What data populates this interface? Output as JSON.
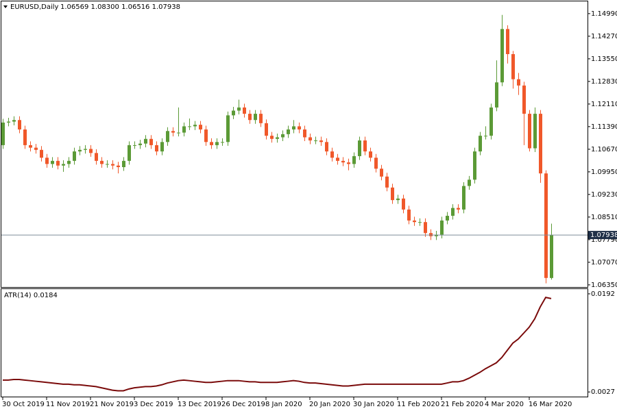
{
  "chart_data": [
    {
      "type": "candlestick",
      "title": "EURUSD,Daily",
      "ohlc_label": "1.06569 1.08300 1.06516 1.07938",
      "up_color": "#5b9a36",
      "down_color": "#f0582a",
      "categories": [
        "30 Oct 2019",
        null,
        null,
        null,
        null,
        null,
        null,
        null,
        "11 Nov 2019",
        null,
        null,
        null,
        null,
        null,
        null,
        null,
        "21 Nov 2019",
        null,
        null,
        null,
        null,
        null,
        null,
        null,
        "3 Dec 2019",
        null,
        null,
        null,
        null,
        null,
        null,
        null,
        "13 Dec 2019",
        null,
        null,
        null,
        null,
        null,
        null,
        null,
        "26 Dec 2019",
        null,
        null,
        null,
        null,
        null,
        null,
        null,
        "8 Jan 2020",
        null,
        null,
        null,
        null,
        null,
        null,
        null,
        "20 Jan 2020",
        null,
        null,
        null,
        null,
        null,
        null,
        null,
        "30 Jan 2020",
        null,
        null,
        null,
        null,
        null,
        null,
        null,
        "11 Feb 2020",
        null,
        null,
        null,
        null,
        null,
        null,
        null,
        "21 Feb 2020",
        null,
        null,
        null,
        null,
        null,
        null,
        null,
        "4 Mar 2020",
        null,
        null,
        null,
        null,
        null,
        null,
        null,
        "16 Mar 2020",
        null,
        null,
        null,
        null
      ],
      "open": [
        1.108,
        1.1152,
        1.1155,
        1.116,
        1.113,
        1.108,
        1.1072,
        1.1065,
        1.104,
        1.102,
        1.103,
        1.1015,
        1.102,
        1.103,
        1.106,
        1.1065,
        1.1068,
        1.1055,
        1.103,
        1.102,
        1.102,
        1.1015,
        1.101,
        1.103,
        1.108,
        1.108,
        1.1085,
        1.11,
        1.108,
        1.106,
        1.109,
        1.1125,
        1.112,
        1.112,
        1.114,
        1.114,
        1.1145,
        1.113,
        1.109,
        1.108,
        1.109,
        1.109,
        1.1175,
        1.119,
        1.12,
        1.118,
        1.116,
        1.118,
        1.115,
        1.111,
        1.11,
        1.1105,
        1.1115,
        1.113,
        1.114,
        1.113,
        1.1105,
        1.1095,
        1.1095,
        1.109,
        1.106,
        1.104,
        1.103,
        1.1025,
        1.102,
        1.1045,
        1.1095,
        1.106,
        1.104,
        1.1005,
        1.098,
        1.0945,
        1.0905,
        1.091,
        1.0875,
        1.084,
        1.0835,
        1.0835,
        1.08,
        1.079,
        1.0795,
        1.084,
        1.0855,
        1.088,
        1.0875,
        1.095,
        1.097,
        1.106,
        1.111,
        1.111,
        1.12,
        1.128,
        1.145,
        1.137,
        1.129,
        1.127,
        1.118,
        1.107,
        1.118,
        1.099,
        1.06569
      ],
      "high": [
        1.1164,
        1.1167,
        1.1172,
        1.1172,
        1.1142,
        1.1092,
        1.1084,
        1.1077,
        1.1052,
        1.1042,
        1.1042,
        1.1032,
        1.1042,
        1.1072,
        1.1077,
        1.108,
        1.108,
        1.1067,
        1.1042,
        1.1032,
        1.1032,
        1.1027,
        1.1042,
        1.1092,
        1.1092,
        1.1097,
        1.1112,
        1.1112,
        1.1092,
        1.1102,
        1.1137,
        1.1137,
        1.12,
        1.1152,
        1.1165,
        1.1157,
        1.1157,
        1.1142,
        1.1102,
        1.1102,
        1.1102,
        1.1187,
        1.1202,
        1.1225,
        1.1212,
        1.1192,
        1.1192,
        1.1192,
        1.1162,
        1.1122,
        1.1117,
        1.1127,
        1.1142,
        1.116,
        1.1152,
        1.1142,
        1.1117,
        1.1107,
        1.1107,
        1.1102,
        1.1072,
        1.1052,
        1.1042,
        1.1037,
        1.1057,
        1.1107,
        1.1107,
        1.1072,
        1.1052,
        1.1017,
        1.0992,
        1.0957,
        1.0922,
        1.0922,
        1.0887,
        1.0852,
        1.0847,
        1.0847,
        1.0812,
        1.0807,
        1.0852,
        1.0867,
        1.0892,
        1.0892,
        1.0962,
        1.0982,
        1.1072,
        1.1122,
        1.114,
        1.1212,
        1.135,
        1.1495,
        1.1462,
        1.138,
        1.131,
        1.1282,
        1.1192,
        1.12,
        1.1192,
        1.1,
        1.083
      ],
      "low": [
        1.1068,
        1.114,
        1.1143,
        1.1118,
        1.1068,
        1.106,
        1.1053,
        1.1028,
        1.1008,
        1.1008,
        1.1003,
        1.0995,
        1.1008,
        1.1018,
        1.1048,
        1.1053,
        1.1043,
        1.1018,
        1.1008,
        1.1008,
        1.1003,
        1.099,
        1.0998,
        1.1018,
        1.1068,
        1.1068,
        1.1073,
        1.1068,
        1.1048,
        1.1048,
        1.1078,
        1.1108,
        1.1108,
        1.1108,
        1.1128,
        1.1128,
        1.1118,
        1.1078,
        1.1068,
        1.1068,
        1.1078,
        1.1078,
        1.1163,
        1.1178,
        1.1168,
        1.1148,
        1.1148,
        1.1138,
        1.1098,
        1.1088,
        1.1088,
        1.1093,
        1.1103,
        1.1118,
        1.1118,
        1.1093,
        1.1083,
        1.1083,
        1.1078,
        1.1048,
        1.1028,
        1.1018,
        1.1013,
        1.1,
        1.1008,
        1.1033,
        1.1048,
        1.1028,
        1.0993,
        1.0968,
        1.0933,
        1.0893,
        1.0893,
        1.0863,
        1.0828,
        1.0823,
        1.0823,
        1.0788,
        1.0778,
        1.0778,
        1.0783,
        1.0828,
        1.0843,
        1.0863,
        1.0863,
        1.0938,
        1.0958,
        1.1048,
        1.1098,
        1.1098,
        1.1188,
        1.1268,
        1.134,
        1.126,
        1.124,
        1.108,
        1.106,
        1.1058,
        1.096,
        1.064,
        1.06516
      ],
      "close": [
        1.1152,
        1.1155,
        1.116,
        1.113,
        1.108,
        1.1072,
        1.1065,
        1.104,
        1.102,
        1.103,
        1.1015,
        1.102,
        1.103,
        1.106,
        1.1065,
        1.1068,
        1.1055,
        1.103,
        1.102,
        1.102,
        1.1015,
        1.101,
        1.103,
        1.108,
        1.108,
        1.1085,
        1.11,
        1.108,
        1.106,
        1.109,
        1.1125,
        1.112,
        1.112,
        1.114,
        1.114,
        1.1145,
        1.113,
        1.109,
        1.108,
        1.109,
        1.109,
        1.1175,
        1.119,
        1.12,
        1.118,
        1.116,
        1.118,
        1.115,
        1.111,
        1.11,
        1.1105,
        1.1115,
        1.113,
        1.114,
        1.113,
        1.1105,
        1.1095,
        1.1095,
        1.109,
        1.106,
        1.104,
        1.103,
        1.1025,
        1.102,
        1.1045,
        1.1095,
        1.106,
        1.104,
        1.1005,
        1.098,
        1.0945,
        1.0905,
        1.091,
        1.0875,
        1.084,
        1.0835,
        1.0835,
        1.08,
        1.079,
        1.0795,
        1.084,
        1.0855,
        1.088,
        1.0875,
        1.095,
        1.097,
        1.106,
        1.111,
        1.111,
        1.12,
        1.128,
        1.145,
        1.137,
        1.129,
        1.127,
        1.118,
        1.107,
        1.118,
        1.099,
        1.0657,
        1.07938
      ],
      "current_price": 1.07938,
      "current_color": "#7d8c99",
      "ylim": [
        1.0626,
        1.1538
      ],
      "yticks": [
        {
          "value": 1.1499,
          "label": "1.14990"
        },
        {
          "value": 1.1427,
          "label": "1.14270"
        },
        {
          "value": 1.1355,
          "label": "1.13550"
        },
        {
          "value": 1.1283,
          "label": "1.12830"
        },
        {
          "value": 1.1211,
          "label": "1.12110"
        },
        {
          "value": 1.1139,
          "label": "1.11390"
        },
        {
          "value": 1.1067,
          "label": "1.10670"
        },
        {
          "value": 1.0995,
          "label": "1.09950"
        },
        {
          "value": 1.0923,
          "label": "1.09230"
        },
        {
          "value": 1.0851,
          "label": "1.08510"
        },
        {
          "value": 1.0779,
          "label": "1.07790"
        },
        {
          "value": 1.0707,
          "label": "1.07070"
        },
        {
          "value": 1.0635,
          "label": "1.06350"
        }
      ]
    },
    {
      "type": "line",
      "title": "ATR(14) 0.0184",
      "color": "#7a0a0a",
      "values": [
        0.0047,
        0.0047,
        0.0048,
        0.0048,
        0.0047,
        0.0046,
        0.0045,
        0.0044,
        0.0043,
        0.0042,
        0.0041,
        0.004,
        0.004,
        0.0039,
        0.0039,
        0.0038,
        0.0037,
        0.0036,
        0.0034,
        0.0032,
        0.003,
        0.0029,
        0.0029,
        0.0032,
        0.0034,
        0.0035,
        0.0036,
        0.0036,
        0.0037,
        0.0039,
        0.0042,
        0.0044,
        0.0046,
        0.0047,
        0.0046,
        0.0045,
        0.0044,
        0.0043,
        0.0043,
        0.0044,
        0.0045,
        0.0046,
        0.0046,
        0.0046,
        0.0045,
        0.0044,
        0.0044,
        0.0043,
        0.0043,
        0.0043,
        0.0043,
        0.0044,
        0.0045,
        0.0046,
        0.0045,
        0.0043,
        0.0042,
        0.0042,
        0.0041,
        0.004,
        0.0039,
        0.0038,
        0.0037,
        0.0037,
        0.0038,
        0.0039,
        0.004,
        0.004,
        0.004,
        0.004,
        0.004,
        0.004,
        0.004,
        0.004,
        0.004,
        0.004,
        0.004,
        0.004,
        0.004,
        0.004,
        0.004,
        0.0042,
        0.0044,
        0.0044,
        0.0046,
        0.005,
        0.0055,
        0.006,
        0.0066,
        0.0071,
        0.0076,
        0.0085,
        0.0097,
        0.0109,
        0.0116,
        0.0126,
        0.0136,
        0.015,
        0.017,
        0.0186,
        0.0184
      ],
      "ylim": [
        0.0018,
        0.02
      ],
      "yticks": [
        0.0192,
        0.0027
      ]
    }
  ]
}
